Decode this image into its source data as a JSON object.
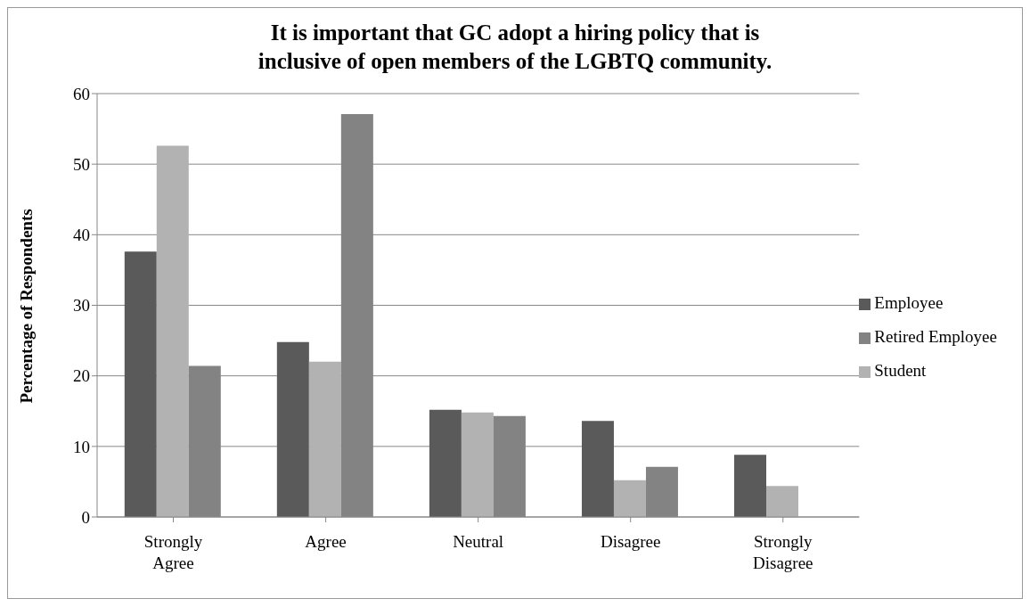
{
  "chart_data": {
    "type": "bar",
    "title": "It is important that GC adopt a hiring policy that is inclusive of open members of the LGBTQ community.",
    "ylabel": "Percentage of Respondents",
    "categories": [
      "Strongly Agree",
      "Agree",
      "Neutral",
      "Disagree",
      "Strongly Disagree"
    ],
    "series": [
      {
        "name": "Employee",
        "color": "#5a5a5a",
        "values": [
          37.6,
          24.8,
          15.2,
          13.6,
          8.8
        ]
      },
      {
        "name": "Student",
        "color": "#b2b2b2",
        "values": [
          52.6,
          22.0,
          14.8,
          5.2,
          4.4
        ]
      },
      {
        "name": "Retired Employee",
        "color": "#838383",
        "values": [
          21.4,
          57.1,
          14.3,
          7.1,
          0
        ]
      }
    ],
    "ylim": [
      0,
      60
    ],
    "yticks": [
      0,
      10,
      20,
      30,
      40,
      50,
      60
    ],
    "grid": "y",
    "legend": "right"
  }
}
